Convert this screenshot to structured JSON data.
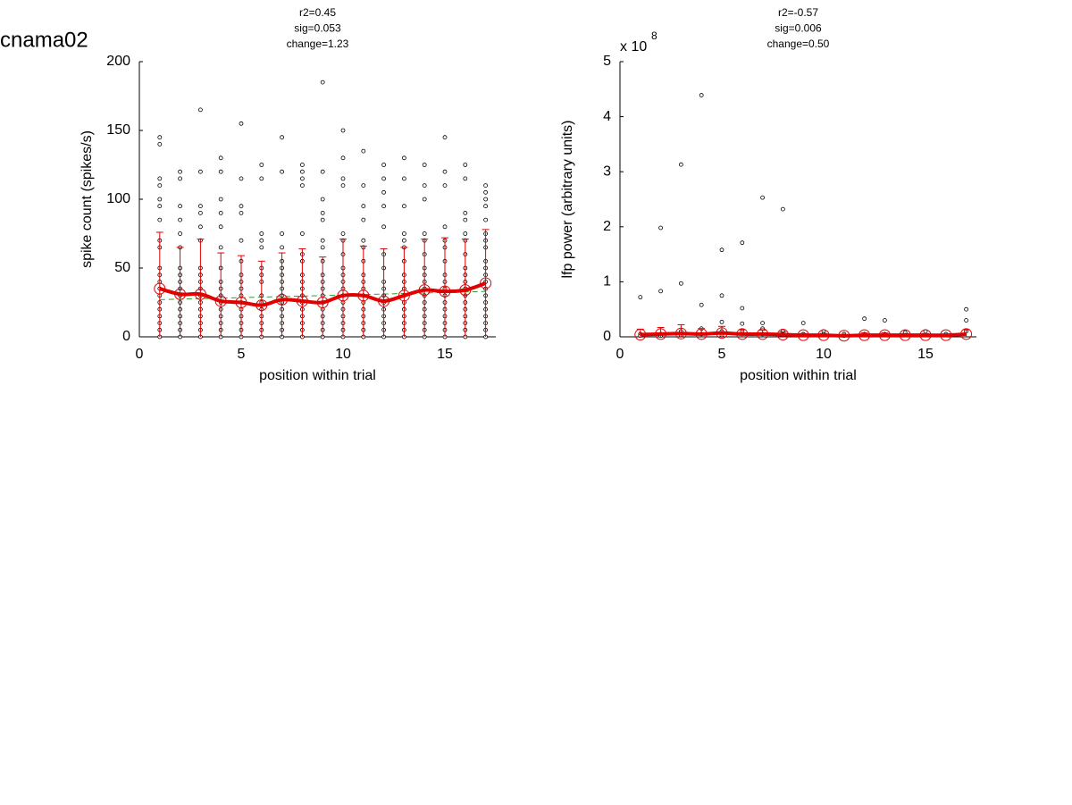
{
  "page_title": "cnama02",
  "chart_data": [
    {
      "type": "scatter",
      "title_lines": [
        "r2=0.45",
        "sig=0.053",
        "change=1.23"
      ],
      "xlabel": "position within trial",
      "ylabel": "spike count (spikes/s)",
      "xlim": [
        0,
        17.5
      ],
      "ylim": [
        0,
        200
      ],
      "xticks": [
        0,
        5,
        10,
        15
      ],
      "yticks": [
        0,
        50,
        100,
        150,
        200
      ],
      "point_color": "#000000",
      "groups": [
        {
          "x": 1,
          "values": [
            145,
            140,
            115,
            110,
            100,
            95,
            85,
            70,
            65,
            50,
            45,
            40,
            35,
            30,
            25,
            20,
            15,
            10,
            5,
            0
          ]
        },
        {
          "x": 2,
          "values": [
            120,
            115,
            95,
            85,
            75,
            65,
            50,
            45,
            40,
            35,
            30,
            25,
            20,
            15,
            10,
            5,
            0
          ]
        },
        {
          "x": 3,
          "values": [
            165,
            120,
            95,
            90,
            80,
            70,
            50,
            45,
            40,
            35,
            30,
            25,
            20,
            15,
            10,
            5,
            0
          ]
        },
        {
          "x": 4,
          "values": [
            130,
            120,
            100,
            90,
            80,
            65,
            50,
            40,
            35,
            30,
            25,
            20,
            15,
            10,
            5,
            0
          ]
        },
        {
          "x": 5,
          "values": [
            155,
            115,
            95,
            90,
            70,
            55,
            45,
            40,
            35,
            30,
            25,
            20,
            15,
            10,
            5,
            0
          ]
        },
        {
          "x": 6,
          "values": [
            125,
            115,
            75,
            70,
            65,
            50,
            45,
            40,
            30,
            25,
            20,
            15,
            10,
            5,
            0
          ]
        },
        {
          "x": 7,
          "values": [
            145,
            120,
            75,
            65,
            55,
            50,
            45,
            40,
            35,
            30,
            25,
            20,
            15,
            10,
            5,
            0
          ]
        },
        {
          "x": 8,
          "values": [
            125,
            120,
            115,
            110,
            75,
            60,
            55,
            45,
            40,
            35,
            30,
            25,
            20,
            15,
            10,
            5,
            0
          ]
        },
        {
          "x": 9,
          "values": [
            185,
            120,
            100,
            90,
            85,
            70,
            65,
            55,
            45,
            40,
            35,
            30,
            25,
            20,
            15,
            10,
            5,
            0
          ]
        },
        {
          "x": 10,
          "values": [
            150,
            130,
            115,
            110,
            75,
            70,
            60,
            50,
            45,
            40,
            35,
            30,
            25,
            20,
            15,
            10,
            5,
            0
          ]
        },
        {
          "x": 11,
          "values": [
            135,
            110,
            95,
            85,
            70,
            65,
            55,
            45,
            40,
            35,
            30,
            25,
            20,
            15,
            10,
            5,
            0
          ]
        },
        {
          "x": 12,
          "values": [
            125,
            115,
            105,
            95,
            80,
            60,
            50,
            40,
            35,
            30,
            25,
            20,
            15,
            10,
            5,
            0
          ]
        },
        {
          "x": 13,
          "values": [
            130,
            115,
            95,
            75,
            70,
            65,
            55,
            45,
            40,
            35,
            30,
            25,
            20,
            15,
            10,
            5,
            0
          ]
        },
        {
          "x": 14,
          "values": [
            125,
            110,
            100,
            75,
            70,
            60,
            50,
            45,
            40,
            35,
            30,
            25,
            20,
            15,
            10,
            5,
            0
          ]
        },
        {
          "x": 15,
          "values": [
            145,
            120,
            110,
            80,
            70,
            65,
            55,
            45,
            40,
            35,
            30,
            25,
            20,
            15,
            10,
            5,
            0
          ]
        },
        {
          "x": 16,
          "values": [
            125,
            115,
            90,
            85,
            75,
            70,
            60,
            50,
            45,
            40,
            35,
            30,
            25,
            20,
            15,
            10,
            5,
            0
          ]
        },
        {
          "x": 17,
          "values": [
            110,
            105,
            100,
            95,
            85,
            75,
            70,
            65,
            55,
            50,
            45,
            40,
            35,
            30,
            25,
            20,
            15,
            10,
            5,
            0
          ]
        }
      ],
      "means": {
        "color": "#e00000",
        "x": [
          1,
          2,
          3,
          4,
          5,
          6,
          7,
          8,
          9,
          10,
          11,
          12,
          13,
          14,
          15,
          16,
          17
        ],
        "values": [
          35,
          31,
          31,
          26,
          25,
          23,
          27,
          26,
          25,
          30,
          30,
          26,
          30,
          34,
          33,
          34,
          39
        ],
        "errors": [
          41,
          34,
          40,
          35,
          34,
          32,
          34,
          38,
          33,
          41,
          36,
          38,
          35,
          37,
          39,
          37,
          39
        ]
      },
      "fit": {
        "color": "#2ca02c",
        "x": [
          1,
          17
        ],
        "values": [
          27,
          33
        ]
      }
    },
    {
      "type": "scatter",
      "title_lines": [
        "r2=-0.57",
        "sig=0.006",
        "change=0.50"
      ],
      "xlabel": "position within trial",
      "ylabel": "lfp power (arbitrary units)",
      "y_multiplier": {
        "base": "x 10",
        "exponent": "8"
      },
      "xlim": [
        0,
        17.5
      ],
      "ylim": [
        0,
        5
      ],
      "xticks": [
        0,
        5,
        10,
        15
      ],
      "yticks": [
        0,
        1,
        2,
        3,
        4,
        5
      ],
      "point_color": "#000000",
      "groups": [
        {
          "x": 1,
          "values": [
            0.72,
            0.05,
            0.02
          ]
        },
        {
          "x": 2,
          "values": [
            1.98,
            0.83,
            0.05,
            0.02
          ]
        },
        {
          "x": 3,
          "values": [
            3.13,
            0.97,
            0.1,
            0.03
          ]
        },
        {
          "x": 4,
          "values": [
            4.39,
            0.58,
            0.15,
            0.05
          ]
        },
        {
          "x": 5,
          "values": [
            1.58,
            0.75,
            0.27,
            0.1,
            0.03
          ]
        },
        {
          "x": 6,
          "values": [
            1.71,
            0.52,
            0.24,
            0.1
          ]
        },
        {
          "x": 7,
          "values": [
            2.53,
            0.25,
            0.15,
            0.05
          ]
        },
        {
          "x": 8,
          "values": [
            2.32,
            0.1,
            0.05
          ]
        },
        {
          "x": 9,
          "values": [
            0.25,
            0.05
          ]
        },
        {
          "x": 10,
          "values": [
            0.1,
            0.05
          ]
        },
        {
          "x": 11,
          "values": [
            0.05,
            0.02
          ]
        },
        {
          "x": 12,
          "values": [
            0.33,
            0.05
          ]
        },
        {
          "x": 13,
          "values": [
            0.3,
            0.05
          ]
        },
        {
          "x": 14,
          "values": [
            0.08,
            0.03
          ]
        },
        {
          "x": 15,
          "values": [
            0.1,
            0.03
          ]
        },
        {
          "x": 16,
          "values": [
            0.05
          ]
        },
        {
          "x": 17,
          "values": [
            0.5,
            0.3,
            0.1
          ]
        }
      ],
      "means": {
        "color": "#e00000",
        "x": [
          1,
          2,
          3,
          4,
          5,
          6,
          7,
          8,
          9,
          10,
          11,
          12,
          13,
          14,
          15,
          16,
          17
        ],
        "values": [
          0.04,
          0.05,
          0.06,
          0.05,
          0.07,
          0.05,
          0.05,
          0.04,
          0.03,
          0.03,
          0.02,
          0.03,
          0.03,
          0.03,
          0.03,
          0.03,
          0.05
        ],
        "errors": [
          0.1,
          0.12,
          0.16,
          0.1,
          0.12,
          0.08,
          0.07,
          0.05,
          0.03,
          0.03,
          0.02,
          0.04,
          0.04,
          0.03,
          0.03,
          0.02,
          0.08
        ]
      }
    }
  ]
}
